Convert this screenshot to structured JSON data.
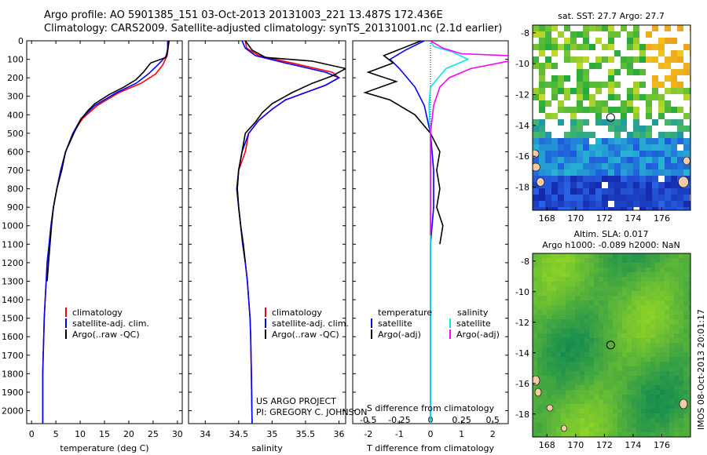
{
  "title_line1": "Argo profile: AO 5901385_151 03-Oct-2013 20131003_221 13.487S 172.436E",
  "title_line2": "Climatology: CARS2009. Satellite-adjusted climatology: synTS_20131001.nc (2.1d earlier)",
  "colors": {
    "climatology": "#ff0000",
    "satellite": "#0000ff",
    "argo": "#000000",
    "sal_satellite": "#00e5ee",
    "sal_argo": "#ff00ff"
  },
  "chart_data": [
    {
      "type": "line",
      "name": "temperature",
      "xlabel": "temperature (deg C)",
      "ylabel": "",
      "xlim": [
        -1,
        31
      ],
      "ylim": [
        2070,
        0
      ],
      "xticks": [
        0,
        5,
        10,
        15,
        20,
        25,
        30
      ],
      "yticks": [
        0,
        100,
        200,
        300,
        400,
        500,
        600,
        700,
        800,
        900,
        1000,
        1100,
        1200,
        1300,
        1400,
        1500,
        1600,
        1700,
        1800,
        1900,
        2000
      ],
      "legend": [
        "climatology",
        "satellite-adj. clim.",
        "Argo(..raw -QC)"
      ],
      "legend_position": "bottom-center",
      "series": [
        {
          "name": "climatology",
          "color": "#ff0000",
          "x": [
            28.2,
            28.1,
            27.9,
            27.0,
            25.5,
            22.5,
            18.0,
            13.5,
            10.5,
            8.5,
            7.0,
            6.0,
            5.2,
            4.5,
            4.0,
            3.6,
            3.2,
            3.0,
            2.8,
            2.6,
            2.5,
            2.4,
            2.3,
            2.3,
            2.3
          ],
          "y": [
            0,
            40,
            80,
            130,
            180,
            230,
            280,
            350,
            420,
            500,
            600,
            700,
            800,
            900,
            1000,
            1100,
            1200,
            1300,
            1400,
            1500,
            1600,
            1700,
            1800,
            1900,
            2070
          ]
        },
        {
          "name": "satellite-adj. clim.",
          "color": "#0000ff",
          "x": [
            28.0,
            28.0,
            27.8,
            26.0,
            24.0,
            21.5,
            17.5,
            13.0,
            10.2,
            8.5,
            7.0,
            6.0,
            5.2,
            4.5,
            4.0,
            3.6,
            3.2,
            3.0,
            2.8,
            2.6,
            2.5,
            2.4,
            2.3,
            2.3,
            2.3
          ],
          "y": [
            0,
            40,
            80,
            130,
            180,
            230,
            280,
            350,
            420,
            500,
            600,
            700,
            800,
            900,
            1000,
            1100,
            1200,
            1300,
            1400,
            1500,
            1600,
            1700,
            1800,
            1900,
            2070
          ]
        },
        {
          "name": "Argo(..raw -QC)",
          "color": "#000000",
          "x": [
            28.3,
            28.0,
            27.6,
            24.5,
            23.0,
            21.5,
            19.0,
            16.0,
            13.0,
            11.5,
            10.0,
            8.7,
            7.0,
            6.2,
            5.2,
            4.5,
            4.1,
            3.8,
            3.5,
            3.2
          ],
          "y": [
            0,
            50,
            90,
            120,
            170,
            210,
            250,
            290,
            340,
            380,
            430,
            500,
            600,
            700,
            800,
            900,
            1000,
            1100,
            1200,
            1300
          ]
        }
      ]
    },
    {
      "type": "line",
      "name": "salinity",
      "xlabel": "salinity",
      "xlim": [
        33.75,
        36.1
      ],
      "ylim": [
        2070,
        0
      ],
      "xticks": [
        34,
        34.5,
        35,
        35.5,
        36
      ],
      "legend": [
        "climatology",
        "satellite-adj. clim.",
        "Argo(..raw -QC)"
      ],
      "legend_position": "bottom-center",
      "series": [
        {
          "name": "climatology",
          "color": "#ff0000",
          "x": [
            34.6,
            34.62,
            34.8,
            35.3,
            35.9,
            36.0,
            35.8,
            35.5,
            35.2,
            35.0,
            34.8,
            34.65,
            34.6,
            34.5,
            34.48,
            34.5,
            34.53,
            34.56,
            34.6,
            34.63,
            34.65,
            34.67,
            34.68,
            34.69,
            34.7
          ],
          "y": [
            0,
            40,
            80,
            120,
            170,
            200,
            240,
            280,
            320,
            370,
            430,
            500,
            600,
            700,
            800,
            900,
            1000,
            1100,
            1200,
            1300,
            1400,
            1500,
            1600,
            1800,
            2070
          ]
        },
        {
          "name": "satellite-adj. clim.",
          "color": "#0000ff",
          "x": [
            34.55,
            34.6,
            34.75,
            35.2,
            35.8,
            36.0,
            35.8,
            35.5,
            35.2,
            35.0,
            34.8,
            34.65,
            34.55,
            34.5,
            34.47,
            34.5,
            34.53,
            34.56,
            34.6,
            34.63,
            34.65,
            34.67,
            34.68,
            34.69,
            34.7
          ],
          "y": [
            0,
            40,
            80,
            120,
            170,
            200,
            240,
            280,
            320,
            370,
            430,
            500,
            600,
            700,
            800,
            900,
            1000,
            1100,
            1200,
            1300,
            1400,
            1500,
            1600,
            1800,
            2070
          ]
        },
        {
          "name": "Argo(..raw -QC)",
          "color": "#000000",
          "x": [
            34.6,
            34.7,
            34.9,
            35.6,
            36.1,
            35.9,
            35.6,
            35.3,
            35.0,
            34.85,
            34.75,
            34.6,
            34.55,
            34.5,
            34.48,
            34.5,
            34.53,
            34.57,
            34.6
          ],
          "y": [
            0,
            50,
            90,
            110,
            150,
            190,
            230,
            280,
            340,
            390,
            440,
            500,
            600,
            700,
            800,
            900,
            1000,
            1100,
            1200
          ]
        }
      ]
    },
    {
      "type": "line",
      "name": "difference from climatology",
      "xlabel": "T difference from climatology",
      "xlabel_top": "S difference from climatology",
      "xlim": [
        -2.5,
        2.5
      ],
      "ylim": [
        2070,
        0
      ],
      "xticks_T": [
        -2,
        -1,
        0,
        1,
        2
      ],
      "xticks_S": [
        "-0.5",
        "-0.25",
        "0",
        "0.25",
        "0.5"
      ],
      "legend_left_title": "temperature",
      "legend_right_title": "salinity",
      "legend_left": [
        "satellite",
        "Argo(-adj)"
      ],
      "legend_right": [
        "satellite",
        "Argo(-adj)"
      ],
      "legend_position": "bottom",
      "series": [
        {
          "name": "T satellite",
          "color": "#0000ff",
          "x": [
            -0.2,
            -0.8,
            -1.3,
            -1.0,
            -0.5,
            -0.2,
            0.0,
            0.1,
            0.1,
            0.0,
            0.0,
            0.0
          ],
          "y": [
            0,
            50,
            100,
            150,
            250,
            350,
            500,
            700,
            900,
            1100,
            1500,
            2070
          ]
        },
        {
          "name": "T Argo(-adj)",
          "color": "#000000",
          "x": [
            -0.3,
            -1.5,
            -1.2,
            -2.0,
            -1.1,
            -2.1,
            -1.3,
            -0.5,
            0.0,
            0.3,
            0.2,
            0.3,
            0.2,
            0.4,
            0.3
          ],
          "y": [
            0,
            80,
            120,
            170,
            220,
            280,
            320,
            400,
            500,
            600,
            700,
            800,
            900,
            1000,
            1100
          ]
        },
        {
          "name": "S satellite",
          "color": "#00e5ee",
          "x": [
            0,
            0.1,
            0.7,
            1.2,
            0.5,
            0.0,
            -0.05,
            0.0,
            0.0,
            0.0,
            0.0,
            0.0
          ],
          "y": [
            0,
            30,
            60,
            100,
            150,
            250,
            350,
            500,
            800,
            1100,
            1500,
            2070
          ]
        },
        {
          "name": "S Argo(-adj)",
          "color": "#ff00ff",
          "x": [
            0,
            0.4,
            1.0,
            2.5,
            2.8,
            1.3,
            0.6,
            0.3,
            0.1,
            0.0,
            0.0,
            0.0
          ],
          "y": [
            0,
            40,
            70,
            80,
            100,
            150,
            200,
            250,
            350,
            500,
            800,
            1050
          ]
        }
      ]
    },
    {
      "type": "heatmap",
      "name": "sst map",
      "title": "sat. SST: 27.7 Argo: 27.7",
      "xticks": [
        168,
        170,
        172,
        174,
        176
      ],
      "yticks": [
        -8,
        -10,
        -12,
        -14,
        -16,
        -18
      ],
      "xlim": [
        167,
        178
      ],
      "ylim": [
        -19.5,
        -7.5
      ],
      "marker": {
        "x": 172.436,
        "y": -13.487
      }
    },
    {
      "type": "heatmap",
      "name": "sla map",
      "title": "Altim. SLA: 0.017",
      "subtitle": "Argo h1000: -0.089 h2000: NaN",
      "xticks": [
        168,
        170,
        172,
        174,
        176
      ],
      "yticks": [
        -8,
        -10,
        -12,
        -14,
        -16,
        -18
      ],
      "xlim": [
        167,
        178
      ],
      "ylim": [
        -19.5,
        -7.5
      ],
      "marker": {
        "x": 172.436,
        "y": -13.487
      }
    }
  ],
  "legend_labels": {
    "clim": "climatology",
    "sat": "satellite-adj. clim.",
    "argo": "Argo(..raw -QC)"
  },
  "project_line1": "US ARGO PROJECT",
  "project_line2": "PI: GREGORY C. JOHNSON",
  "imos_stamp": "IMOS 08-Oct-2013 20:01:17"
}
